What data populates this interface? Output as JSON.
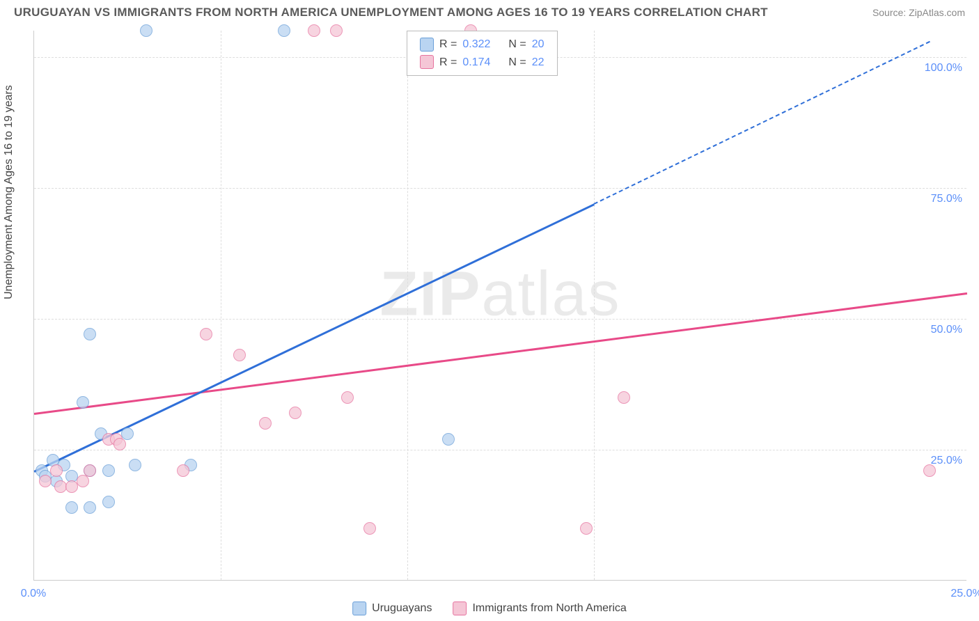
{
  "header": {
    "title": "URUGUAYAN VS IMMIGRANTS FROM NORTH AMERICA UNEMPLOYMENT AMONG AGES 16 TO 19 YEARS CORRELATION CHART",
    "source": "Source: ZipAtlas.com"
  },
  "watermark": {
    "part1": "ZIP",
    "part2": "atlas"
  },
  "chart": {
    "type": "scatter",
    "y_axis_title": "Unemployment Among Ages 16 to 19 years",
    "xlim": [
      0,
      25
    ],
    "ylim": [
      0,
      105
    ],
    "x_ticks": [
      0,
      25
    ],
    "x_tick_labels": [
      "0.0%",
      "25.0%"
    ],
    "y_ticks": [
      25,
      50,
      75,
      100
    ],
    "y_tick_labels": [
      "25.0%",
      "50.0%",
      "75.0%",
      "100.0%"
    ],
    "x_gridlines": [
      5,
      10,
      15
    ],
    "grid_color": "#dddddd",
    "background_color": "#ffffff",
    "series": [
      {
        "name": "Uruguayans",
        "color_fill": "#b9d4f1",
        "color_stroke": "#6a9fd8",
        "points": [
          [
            0.2,
            21
          ],
          [
            0.3,
            20
          ],
          [
            0.5,
            23
          ],
          [
            0.6,
            19
          ],
          [
            0.8,
            22
          ],
          [
            1.0,
            20
          ],
          [
            1.0,
            14
          ],
          [
            1.3,
            34
          ],
          [
            1.5,
            47
          ],
          [
            1.5,
            21
          ],
          [
            1.5,
            14
          ],
          [
            1.8,
            28
          ],
          [
            2.0,
            21
          ],
          [
            2.0,
            15
          ],
          [
            2.5,
            28
          ],
          [
            2.7,
            22
          ],
          [
            3.0,
            105
          ],
          [
            4.2,
            22
          ],
          [
            6.7,
            105
          ],
          [
            11.1,
            27
          ]
        ],
        "trend": {
          "x1": 0,
          "y1": 21,
          "x2": 15,
          "y2": 72,
          "line_color": "#2f6fd8",
          "dash_from_x": 15,
          "x2_dash": 24,
          "y2_dash": 103
        },
        "legend": {
          "R": "0.322",
          "N": "20"
        }
      },
      {
        "name": "Immigrants from North America",
        "color_fill": "#f5c6d6",
        "color_stroke": "#e6739f",
        "points": [
          [
            0.3,
            19
          ],
          [
            0.6,
            21
          ],
          [
            0.7,
            18
          ],
          [
            1.0,
            18
          ],
          [
            1.3,
            19
          ],
          [
            1.5,
            21
          ],
          [
            2.0,
            27
          ],
          [
            2.2,
            27
          ],
          [
            2.3,
            26
          ],
          [
            4.0,
            21
          ],
          [
            4.6,
            47
          ],
          [
            5.5,
            43
          ],
          [
            6.2,
            30
          ],
          [
            7.0,
            32
          ],
          [
            7.5,
            105
          ],
          [
            8.1,
            105
          ],
          [
            8.4,
            35
          ],
          [
            9.0,
            10
          ],
          [
            11.7,
            105
          ],
          [
            14.8,
            10
          ],
          [
            15.8,
            35
          ],
          [
            24.0,
            21
          ]
        ],
        "trend": {
          "x1": 0,
          "y1": 32,
          "x2": 25,
          "y2": 55,
          "line_color": "#e84n88",
          "corrected_color": "#e84a88"
        },
        "legend": {
          "R": "0.174",
          "N": "22"
        }
      }
    ],
    "legend_box": {
      "r_label": "R =",
      "n_label": "N ="
    },
    "bottom_legend": {
      "series1_label": "Uruguayans",
      "series2_label": "Immigrants from North America"
    }
  }
}
